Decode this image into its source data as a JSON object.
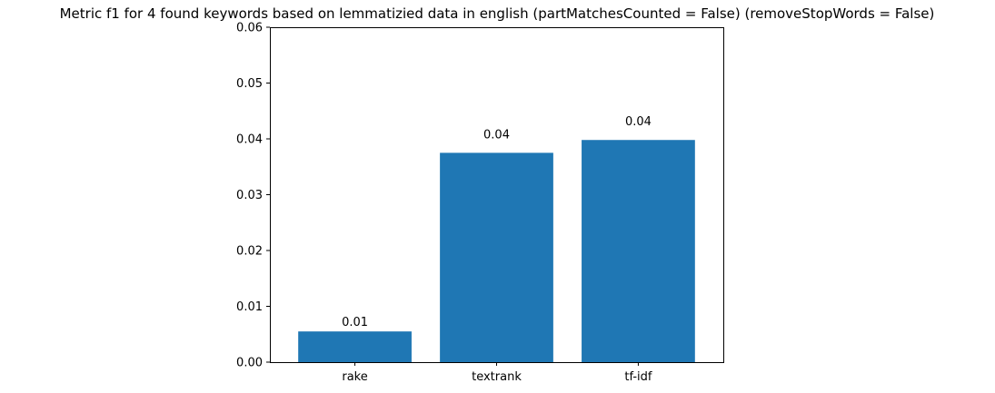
{
  "chart_data": {
    "type": "bar",
    "title": "Metric f1 for 4 found keywords based on lemmatizied data in english (partMatchesCounted = False) (removeStopWords = False)",
    "xlabel": "",
    "ylabel": "",
    "categories": [
      "rake",
      "textrank",
      "tf-idf"
    ],
    "values": [
      0.0055,
      0.0375,
      0.0398
    ],
    "data_labels": [
      "0.01",
      "0.04",
      "0.04"
    ],
    "ylim": [
      0,
      0.06
    ],
    "yticks": [
      0.0,
      0.01,
      0.02,
      0.03,
      0.04,
      0.05,
      0.06
    ],
    "ytick_labels": [
      "0.00",
      "0.01",
      "0.02",
      "0.03",
      "0.04",
      "0.05",
      "0.06"
    ],
    "bar_color": "#1f77b4",
    "grid": false,
    "legend": "none"
  }
}
